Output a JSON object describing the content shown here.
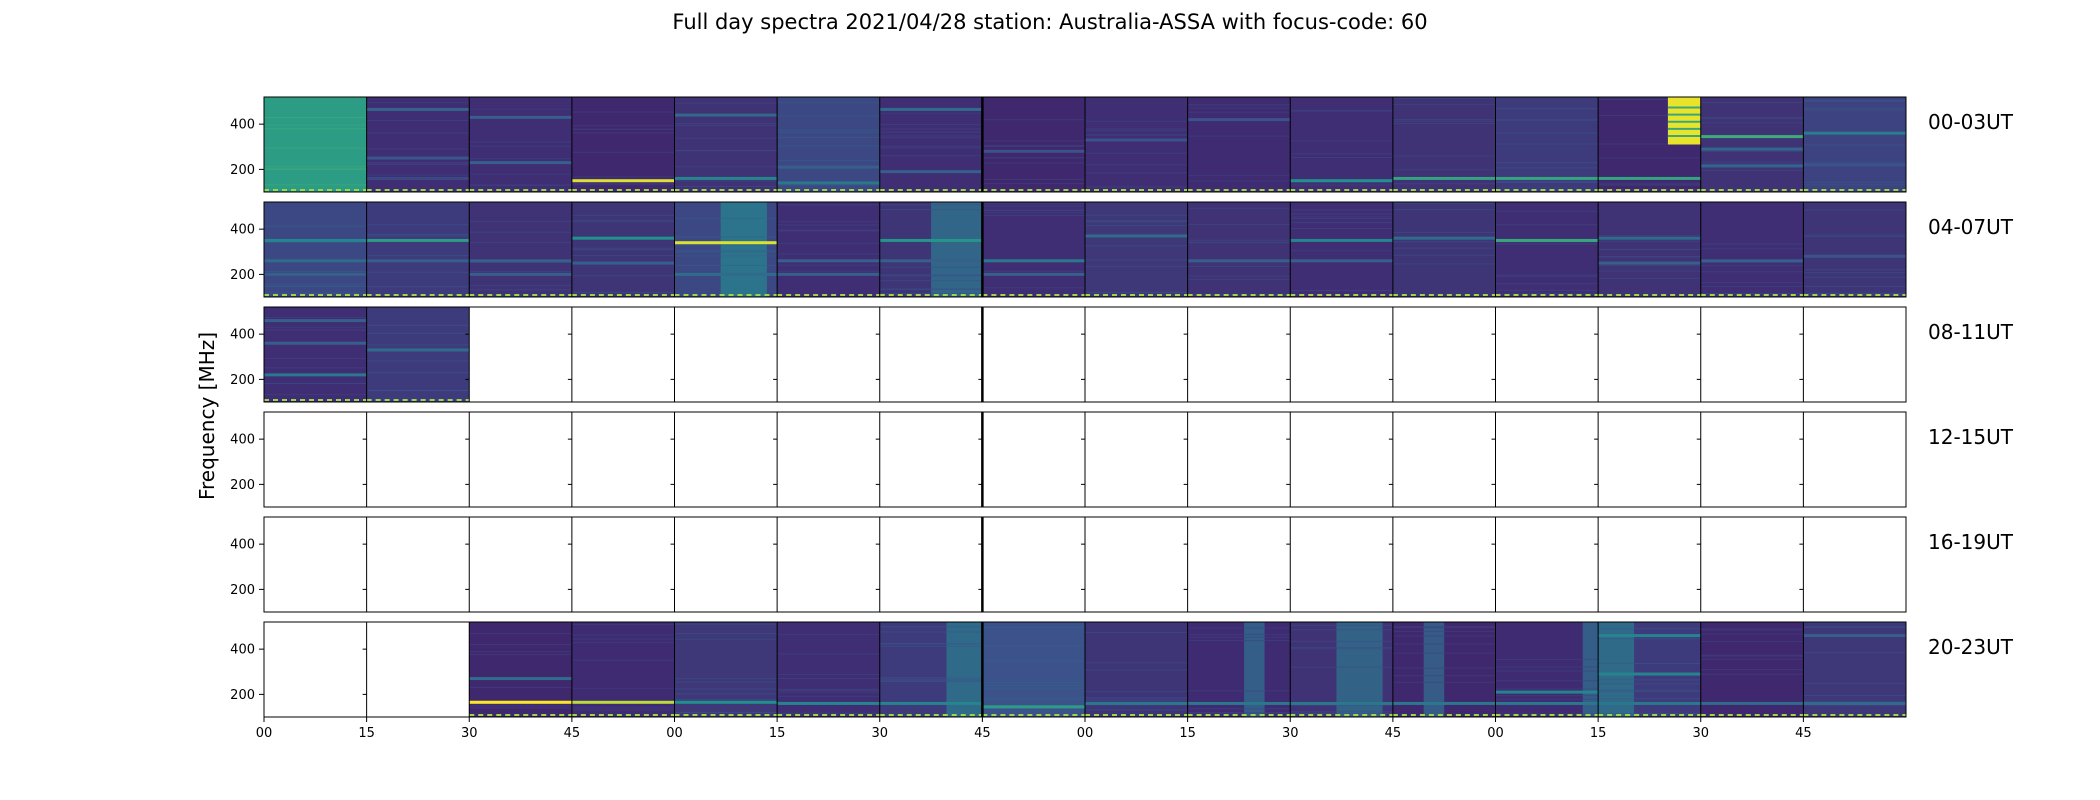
{
  "figure": {
    "title": "Full day spectra 2021/04/28 station: Australia-ASSA with focus-code: 60",
    "ylabel": "Frequency [MHz]"
  },
  "chart_data": {
    "type": "heatmap",
    "title": "Full day spectra 2021/04/28 station: Australia-ASSA with focus-code: 60",
    "xlabel": "",
    "ylabel": "Frequency [MHz]",
    "ylim": [
      100,
      520
    ],
    "y_ticks": [
      "200",
      "400"
    ],
    "x_ticks": [
      "00",
      "15",
      "30",
      "45",
      "00",
      "15",
      "30",
      "45",
      "00",
      "15",
      "30",
      "45",
      "00",
      "15",
      "30",
      "45"
    ],
    "colormap": [
      "#440154",
      "#3b528b",
      "#21918c",
      "#5ec962",
      "#fde725"
    ],
    "rows": [
      {
        "label": "00-03UT",
        "panels": [
          {
            "state": "data",
            "base": 0.55
          },
          {
            "state": "data",
            "base": 0.14,
            "lines": [
              [
                465,
                0.32
              ],
              [
                250,
                0.26
              ],
              [
                160,
                0.22
              ]
            ]
          },
          {
            "state": "data",
            "base": 0.14,
            "lines": [
              [
                430,
                0.3
              ],
              [
                230,
                0.3
              ]
            ]
          },
          {
            "state": "data",
            "base": 0.12,
            "lines": [
              [
                150,
                0.95
              ]
            ]
          },
          {
            "state": "data",
            "base": 0.15,
            "lines": [
              [
                440,
                0.34
              ],
              [
                160,
                0.45
              ]
            ]
          },
          {
            "state": "data",
            "base": 0.22,
            "lines": [
              [
                210,
                0.3
              ],
              [
                140,
                0.4
              ]
            ]
          },
          {
            "state": "data",
            "base": 0.14,
            "lines": [
              [
                465,
                0.35
              ],
              [
                190,
                0.3
              ]
            ]
          },
          {
            "state": "data",
            "base": 0.12,
            "lines": [
              [
                280,
                0.25
              ]
            ]
          },
          {
            "state": "data",
            "base": 0.14,
            "lines": [
              [
                330,
                0.25
              ]
            ]
          },
          {
            "state": "data",
            "base": 0.13,
            "lines": [
              [
                420,
                0.25
              ]
            ]
          },
          {
            "state": "data",
            "base": 0.14,
            "lines": [
              [
                150,
                0.5
              ]
            ]
          },
          {
            "state": "data",
            "base": 0.15,
            "lines": [
              [
                160,
                0.58
              ]
            ]
          },
          {
            "state": "data",
            "base": 0.18,
            "lines": [
              [
                160,
                0.58
              ]
            ]
          },
          {
            "state": "data",
            "base": 0.12,
            "lines": [
              [
                160,
                0.58
              ]
            ],
            "burst_right": [
              310,
              520
            ]
          },
          {
            "state": "data",
            "base": 0.15,
            "lines": [
              [
                345,
                0.62
              ],
              [
                290,
                0.32
              ],
              [
                215,
                0.32
              ]
            ]
          },
          {
            "state": "data",
            "base": 0.2,
            "lines": [
              [
                360,
                0.42
              ],
              [
                220,
                0.25
              ]
            ]
          }
        ]
      },
      {
        "label": "04-07UT",
        "panels": [
          {
            "state": "data",
            "base": 0.22,
            "lines": [
              [
                350,
                0.45
              ],
              [
                260,
                0.35
              ],
              [
                200,
                0.3
              ]
            ]
          },
          {
            "state": "data",
            "base": 0.18,
            "lines": [
              [
                350,
                0.55
              ],
              [
                260,
                0.3
              ]
            ]
          },
          {
            "state": "data",
            "base": 0.15,
            "lines": [
              [
                260,
                0.3
              ],
              [
                200,
                0.3
              ]
            ]
          },
          {
            "state": "data",
            "base": 0.16,
            "lines": [
              [
                360,
                0.5
              ],
              [
                250,
                0.3
              ]
            ]
          },
          {
            "state": "data",
            "base": 0.22,
            "band": [
              0.45,
              0.9
            ],
            "lines": [
              [
                340,
                0.95
              ],
              [
                200,
                0.35
              ]
            ]
          },
          {
            "state": "data",
            "base": 0.14,
            "lines": [
              [
                260,
                0.3
              ],
              [
                200,
                0.3
              ]
            ]
          },
          {
            "state": "data",
            "base": 0.16,
            "band": [
              0.5,
              1.0
            ],
            "lines": [
              [
                350,
                0.52
              ],
              [
                260,
                0.3
              ]
            ]
          },
          {
            "state": "data",
            "base": 0.14,
            "lines": [
              [
                260,
                0.4
              ],
              [
                200,
                0.3
              ]
            ]
          },
          {
            "state": "data",
            "base": 0.17,
            "lines": [
              [
                370,
                0.35
              ]
            ]
          },
          {
            "state": "data",
            "base": 0.15,
            "lines": [
              [
                260,
                0.3
              ]
            ]
          },
          {
            "state": "data",
            "base": 0.14,
            "lines": [
              [
                350,
                0.45
              ],
              [
                260,
                0.3
              ]
            ]
          },
          {
            "state": "data",
            "base": 0.16,
            "lines": [
              [
                360,
                0.35
              ]
            ]
          },
          {
            "state": "data",
            "base": 0.14,
            "lines": [
              [
                350,
                0.6
              ]
            ]
          },
          {
            "state": "data",
            "base": 0.15,
            "lines": [
              [
                360,
                0.35
              ],
              [
                250,
                0.3
              ]
            ]
          },
          {
            "state": "data",
            "base": 0.14,
            "lines": [
              [
                260,
                0.3
              ]
            ]
          },
          {
            "state": "data",
            "base": 0.16,
            "lines": [
              [
                280,
                0.25
              ]
            ]
          }
        ]
      },
      {
        "label": "08-11UT",
        "panels": [
          {
            "state": "data",
            "base": 0.14,
            "lines": [
              [
                460,
                0.3
              ],
              [
                360,
                0.3
              ],
              [
                220,
                0.4
              ]
            ]
          },
          {
            "state": "data",
            "base": 0.18,
            "lines": [
              [
                330,
                0.35
              ]
            ]
          },
          {
            "state": "empty"
          },
          {
            "state": "empty"
          },
          {
            "state": "empty"
          },
          {
            "state": "empty"
          },
          {
            "state": "empty"
          },
          {
            "state": "empty"
          },
          {
            "state": "empty"
          },
          {
            "state": "empty"
          },
          {
            "state": "empty"
          },
          {
            "state": "empty"
          },
          {
            "state": "empty"
          },
          {
            "state": "empty"
          },
          {
            "state": "empty"
          },
          {
            "state": "empty"
          }
        ]
      },
      {
        "label": "12-15UT",
        "panels": [
          {
            "state": "empty"
          },
          {
            "state": "empty"
          },
          {
            "state": "empty"
          },
          {
            "state": "empty"
          },
          {
            "state": "empty"
          },
          {
            "state": "empty"
          },
          {
            "state": "empty"
          },
          {
            "state": "empty"
          },
          {
            "state": "empty"
          },
          {
            "state": "empty"
          },
          {
            "state": "empty"
          },
          {
            "state": "empty"
          },
          {
            "state": "empty"
          },
          {
            "state": "empty"
          },
          {
            "state": "empty"
          },
          {
            "state": "empty"
          }
        ]
      },
      {
        "label": "16-19UT",
        "panels": [
          {
            "state": "empty"
          },
          {
            "state": "empty"
          },
          {
            "state": "empty"
          },
          {
            "state": "empty"
          },
          {
            "state": "empty"
          },
          {
            "state": "empty"
          },
          {
            "state": "empty"
          },
          {
            "state": "empty"
          },
          {
            "state": "empty"
          },
          {
            "state": "empty"
          },
          {
            "state": "empty"
          },
          {
            "state": "empty"
          },
          {
            "state": "empty"
          },
          {
            "state": "empty"
          },
          {
            "state": "empty"
          },
          {
            "state": "empty"
          }
        ]
      },
      {
        "label": "20-23UT",
        "panels": [
          {
            "state": "empty"
          },
          {
            "state": "empty"
          },
          {
            "state": "data",
            "base": 0.12,
            "lines": [
              [
                165,
                1.0
              ],
              [
                270,
                0.35
              ]
            ]
          },
          {
            "state": "data",
            "base": 0.13,
            "lines": [
              [
                165,
                0.9
              ]
            ]
          },
          {
            "state": "data",
            "base": 0.17,
            "lines": [
              [
                165,
                0.5
              ]
            ]
          },
          {
            "state": "data",
            "base": 0.14,
            "lines": [
              [
                160,
                0.45
              ]
            ]
          },
          {
            "state": "data",
            "base": 0.18,
            "band": [
              0.65,
              1.0
            ],
            "lines": [
              [
                160,
                0.45
              ]
            ]
          },
          {
            "state": "data",
            "base": 0.25,
            "lines": [
              [
                145,
                0.55
              ]
            ]
          },
          {
            "state": "data",
            "base": 0.16,
            "lines": [
              [
                160,
                0.4
              ]
            ]
          },
          {
            "state": "data",
            "base": 0.13,
            "band": [
              0.55,
              0.75
            ],
            "lines": [
              [
                160,
                0.4
              ]
            ]
          },
          {
            "state": "data",
            "base": 0.15,
            "band": [
              0.45,
              0.9
            ],
            "lines": [
              [
                160,
                0.4
              ]
            ]
          },
          {
            "state": "data",
            "base": 0.12,
            "band": [
              0.3,
              0.5
            ],
            "lines": [
              [
                160,
                0.4
              ]
            ]
          },
          {
            "state": "data",
            "base": 0.13,
            "band": [
              0.85,
              1.0
            ],
            "lines": [
              [
                210,
                0.45
              ],
              [
                160,
                0.4
              ]
            ]
          },
          {
            "state": "data",
            "base": 0.18,
            "band": [
              0.0,
              0.35
            ],
            "lines": [
              [
                460,
                0.45
              ],
              [
                290,
                0.45
              ],
              [
                160,
                0.4
              ]
            ]
          },
          {
            "state": "data",
            "base": 0.12,
            "lines": [
              [
                160,
                0.35
              ]
            ]
          },
          {
            "state": "data",
            "base": 0.17,
            "lines": [
              [
                460,
                0.3
              ],
              [
                160,
                0.35
              ]
            ]
          }
        ]
      }
    ]
  }
}
